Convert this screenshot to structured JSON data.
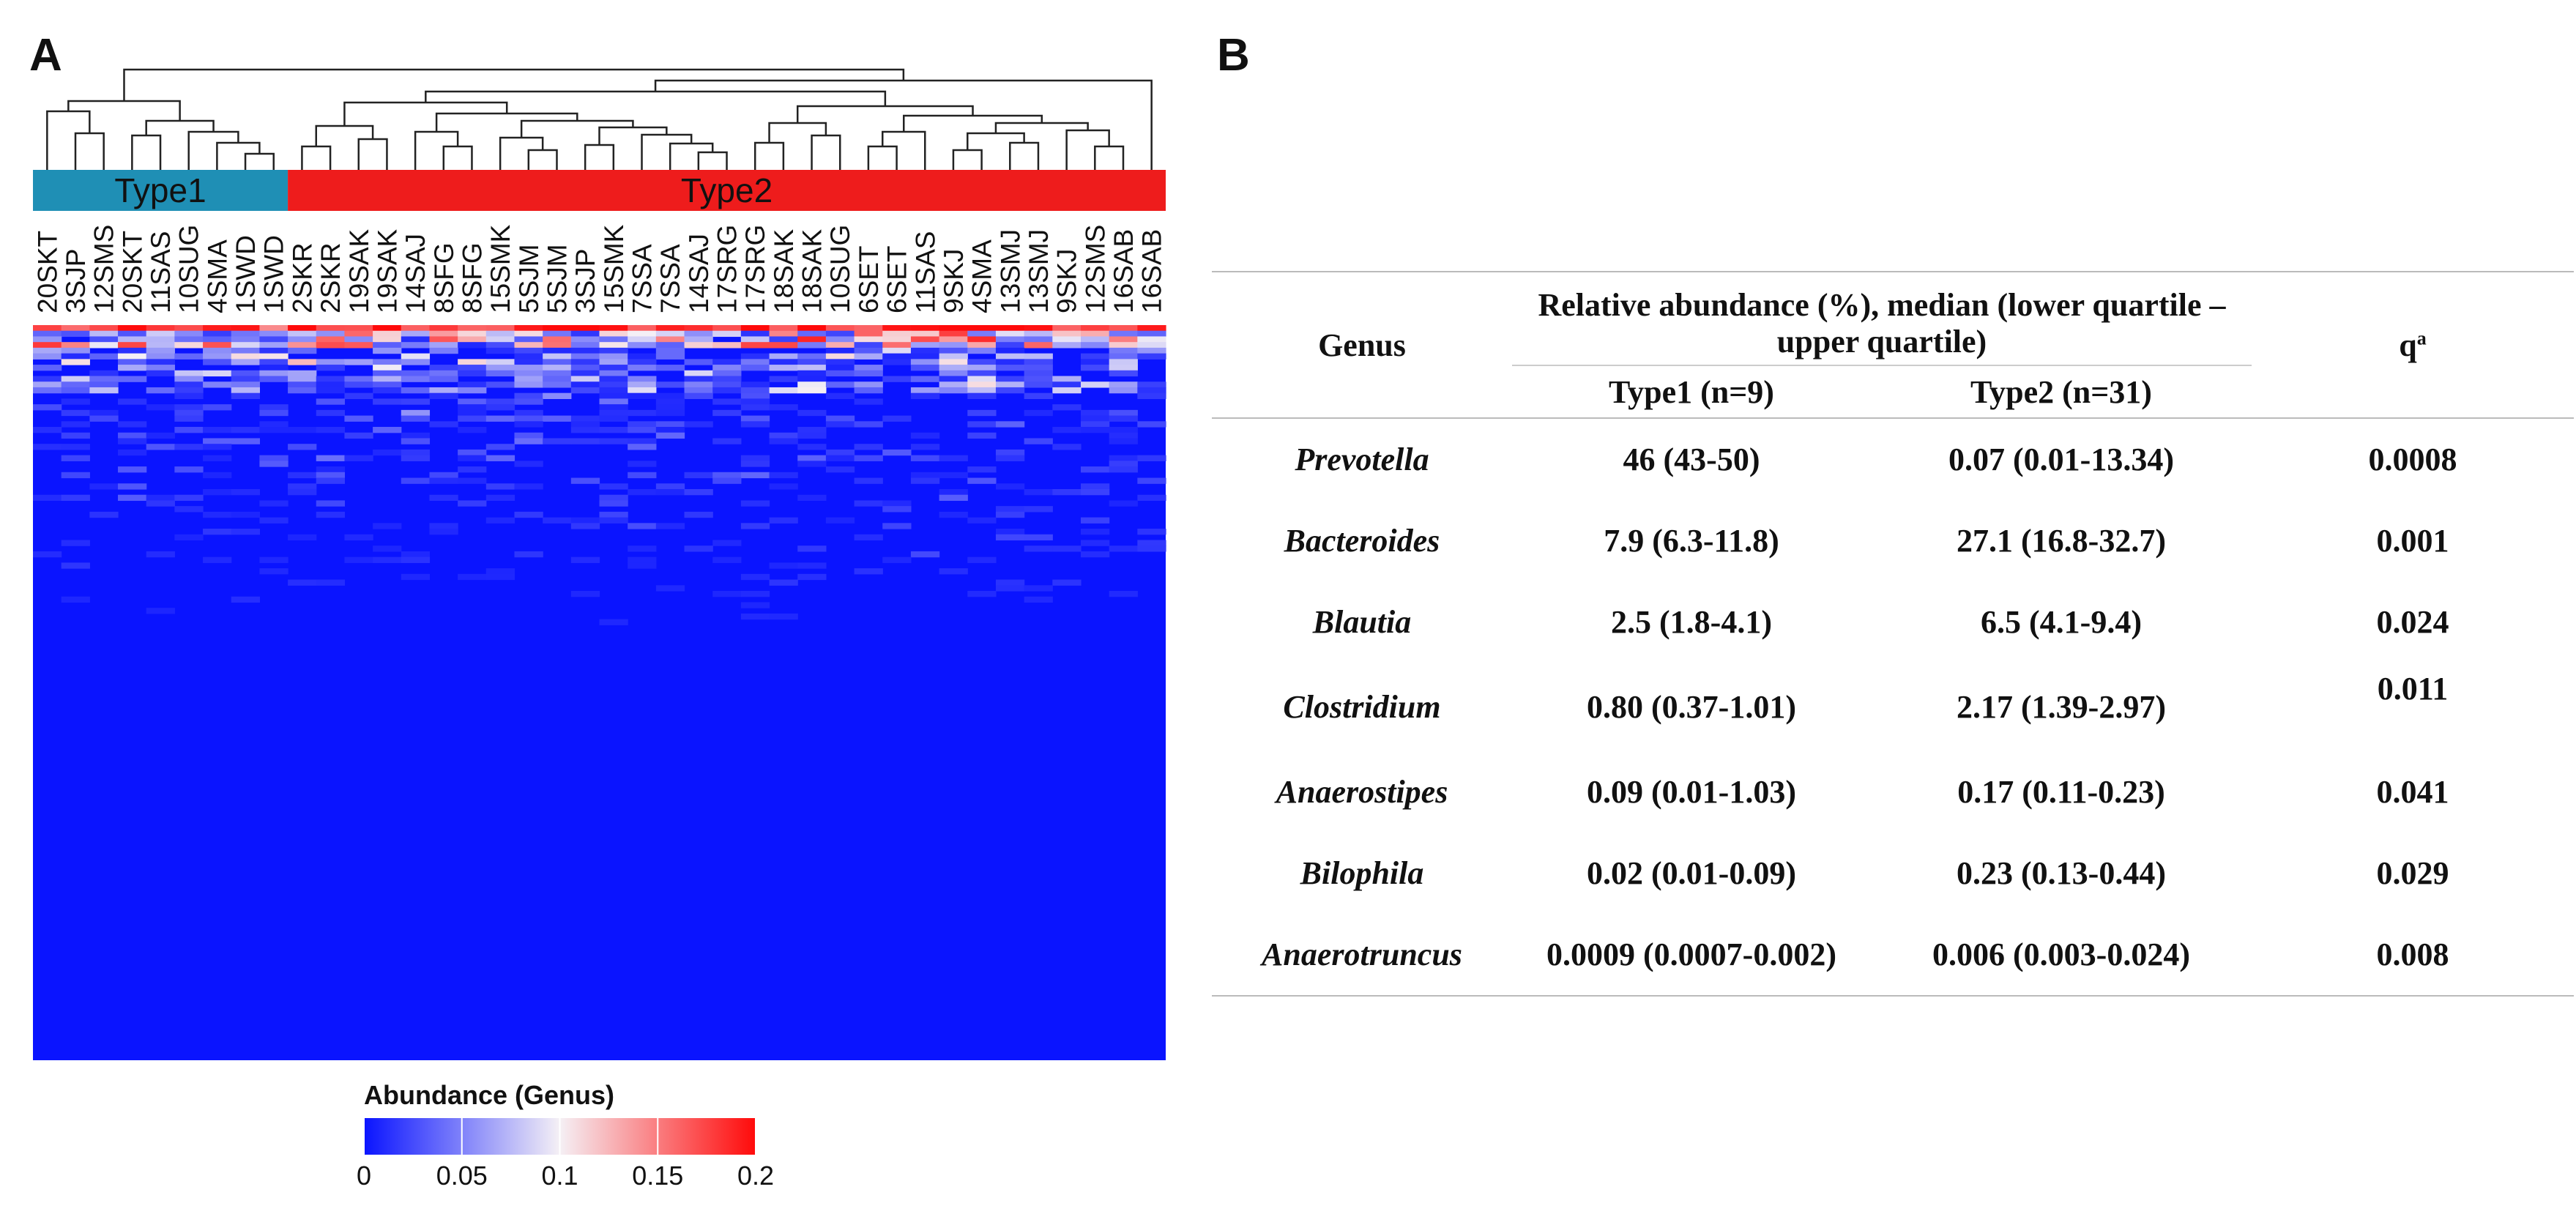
{
  "panel_a_label": "A",
  "panel_b_label": "B",
  "heatmap": {
    "groups": [
      {
        "label": "Type1",
        "count": 9,
        "color": "#1f8fb5"
      },
      {
        "label": "Type2",
        "count": 31,
        "color": "#ee1c1c"
      }
    ],
    "samples": [
      "20SKT",
      "3SJP",
      "12SMS",
      "20SKT",
      "11SAS",
      "10SUG",
      "4SMA",
      "1SWD",
      "1SWD",
      "2SKR",
      "2SKR",
      "19SAK",
      "19SAK",
      "14SAJ",
      "8SFG",
      "8SFG",
      "15SMK",
      "5SJM",
      "5SJM",
      "3SJP",
      "15SMK",
      "7SSA",
      "7SSA",
      "14SAJ",
      "17SRG",
      "17SRG",
      "18SAK",
      "18SAK",
      "10SUG",
      "6SET",
      "6SET",
      "11SAS",
      "9SKJ",
      "4SMA",
      "13SMJ",
      "13SMJ",
      "9SKJ",
      "12SMS",
      "16SAB",
      "16SAB"
    ],
    "legend_title": "Abundance (Genus)",
    "legend_ticks": [
      "0",
      "0.05",
      "0.1",
      "0.15",
      "0.2"
    ],
    "scale_colors": {
      "low": "#0a14ff",
      "mid": "#f5f0f5",
      "high": "#ff0a0a"
    }
  },
  "table": {
    "genus_header": "Genus",
    "abundance_header": "Relative abundance (%), median (lower quartile – upper quartile)",
    "q_header": "q",
    "q_sup": "a",
    "type1_header": "Type1 (n=9)",
    "type2_header": "Type2 (n=31)",
    "rows": [
      {
        "genus": "Prevotella",
        "type1": "46 (43-50)",
        "type2": "0.07 (0.01-13.34)",
        "q": "0.0008"
      },
      {
        "genus": "Bacteroides",
        "type1": "7.9 (6.3-11.8)",
        "type2": "27.1 (16.8-32.7)",
        "q": "0.001"
      },
      {
        "genus": "Blautia",
        "type1": "2.5 (1.8-4.1)",
        "type2": "6.5 (4.1-9.4)",
        "q": "0.024"
      },
      {
        "genus": "Clostridium",
        "type1": "0.80 (0.37-1.01)",
        "type2": "2.17 (1.39-2.97)",
        "q": "0.011"
      },
      {
        "genus": "Anaerostipes",
        "type1": "0.09 (0.01-1.03)",
        "type2": "0.17 (0.11-0.23)",
        "q": "0.041"
      },
      {
        "genus": "Bilophila",
        "type1": "0.02 (0.01-0.09)",
        "type2": "0.23 (0.13-0.44)",
        "q": "0.029"
      },
      {
        "genus": "Anaerotruncus",
        "type1": "0.0009 (0.0007-0.002)",
        "type2": "0.006 (0.003-0.024)",
        "q": "0.008"
      }
    ]
  }
}
